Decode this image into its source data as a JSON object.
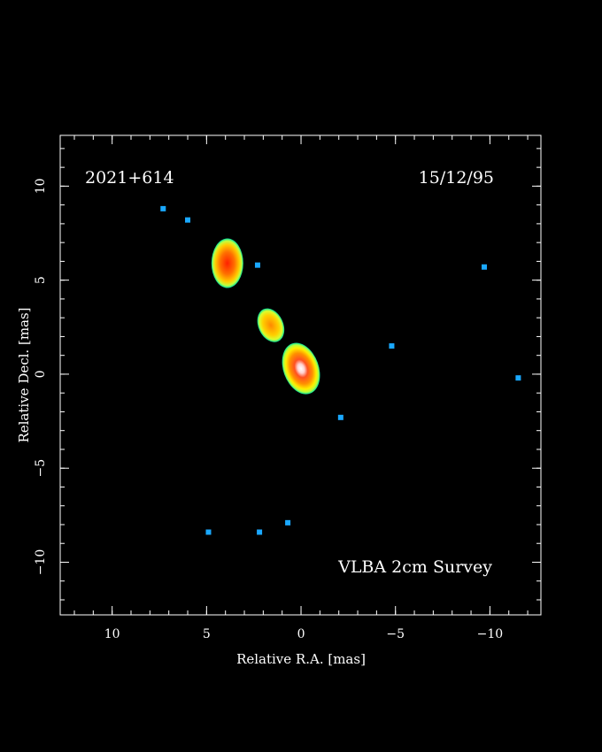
{
  "chart_data": {
    "type": "image",
    "source": "2021+614",
    "date": "15/12/95",
    "survey": "VLBA 2cm Survey",
    "x_label": "Relative R.A. [mas]",
    "y_label": "Relative Decl. [mas]",
    "xlim": [
      12.75,
      -12.7
    ],
    "ylim": [
      -12.8,
      12.7
    ],
    "xticks": [
      10,
      5,
      0,
      {
        "value": -5,
        "label": "−5"
      },
      {
        "value": -10,
        "label": "−10"
      }
    ],
    "yticks": [
      {
        "value": -10,
        "label": "−10"
      },
      {
        "value": -5,
        "label": "−5"
      },
      0,
      5,
      10
    ],
    "components": {
      "x": [
        0,
        1.6,
        3.9
      ],
      "y": [
        0.3,
        2.6,
        5.9
      ]
    },
    "noise": {
      "x": [
        6.0,
        2.3,
        -4.8,
        -2.1,
        4.9,
        2.2,
        0.7,
        -9.7,
        -11.5,
        7.3
      ],
      "y": [
        8.2,
        5.8,
        1.5,
        -2.3,
        -8.4,
        -8.4,
        -7.9,
        5.7,
        -0.2,
        8.8
      ]
    }
  }
}
